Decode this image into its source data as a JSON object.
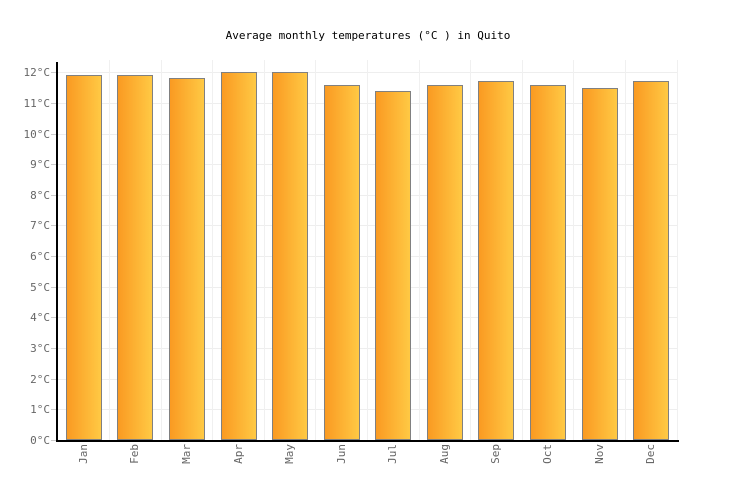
{
  "chart_data": {
    "type": "bar",
    "title": "Average monthly temperatures (°C ) in Quito",
    "categories": [
      "Jan",
      "Feb",
      "Mar",
      "Apr",
      "May",
      "Jun",
      "Jul",
      "Aug",
      "Sep",
      "Oct",
      "Nov",
      "Dec"
    ],
    "values": [
      11.9,
      11.9,
      11.8,
      12.0,
      12.0,
      11.6,
      11.4,
      11.6,
      11.7,
      11.6,
      11.5,
      11.7
    ],
    "unit": "°C",
    "xlabel": "",
    "ylabel": "",
    "ylim": [
      0,
      12.4
    ],
    "ytick_step": 1,
    "ytick_labels": [
      "0°C",
      "1°C",
      "2°C",
      "3°C",
      "4°C",
      "5°C",
      "6°C",
      "7°C",
      "8°C",
      "9°C",
      "10°C",
      "11°C",
      "12°C"
    ],
    "grid": true,
    "legend": false,
    "colors": {
      "bar_gradient_left": "#FA9A22",
      "bar_gradient_right": "#FFC944",
      "bar_border": "#808080",
      "grid_horizontal": "#EEEEEE",
      "grid_vertical": "#F0F0F0",
      "axis": "#000000",
      "tick": "#CCCCCC",
      "axis_label": "#666666",
      "title": "#000000",
      "background": "#FFFFFF"
    }
  }
}
